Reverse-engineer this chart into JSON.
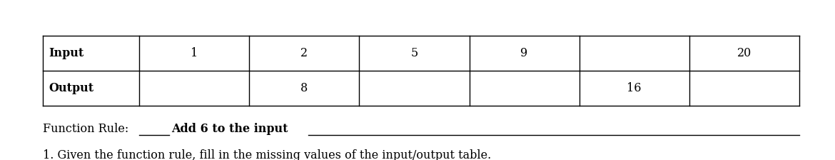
{
  "title": "1. Given the function rule, fill in the missing values of the input/output table.",
  "title_fontsize": 11.5,
  "input_vals": [
    "1",
    "2",
    "5",
    "9",
    "",
    "20"
  ],
  "output_vals": [
    "",
    "8",
    "",
    "",
    "16",
    ""
  ],
  "row1_label": "Input",
  "row2_label": "Output",
  "function_rule_normal": "Function Rule: ",
  "function_rule_bold": "Add 6 to the input",
  "background": "#ffffff",
  "text_color": "#000000",
  "table_line_color": "#000000",
  "font_family": "DejaVu Serif"
}
